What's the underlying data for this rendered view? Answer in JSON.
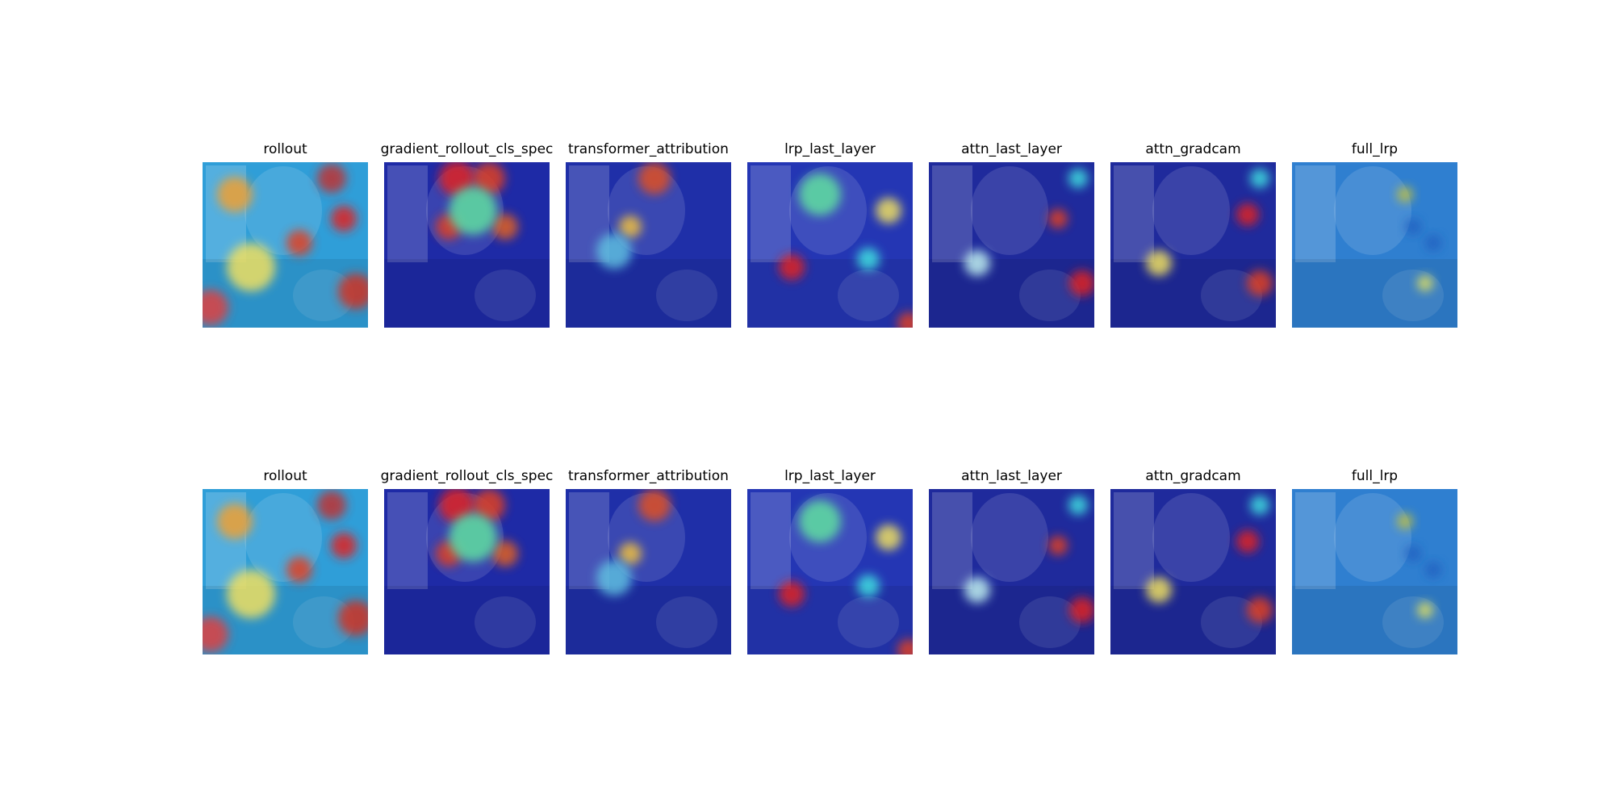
{
  "figure": {
    "rows": [
      {
        "panels": [
          {
            "title": "rollout",
            "method": "rollout"
          },
          {
            "title": "gradient_rollout_cls_spec",
            "method": "gradient_rollout_cls_spec"
          },
          {
            "title": "transformer_attribution",
            "method": "transformer_attribution"
          },
          {
            "title": "lrp_last_layer",
            "method": "lrp_last_layer"
          },
          {
            "title": "attn_last_layer",
            "method": "attn_last_layer"
          },
          {
            "title": "attn_gradcam",
            "method": "attn_gradcam"
          },
          {
            "title": "full_lrp",
            "method": "full_lrp"
          }
        ]
      },
      {
        "panels": [
          {
            "title": "rollout",
            "method": "rollout"
          },
          {
            "title": "gradient_rollout_cls_spec",
            "method": "gradient_rollout_cls_spec"
          },
          {
            "title": "transformer_attribution",
            "method": "transformer_attribution"
          },
          {
            "title": "lrp_last_layer",
            "method": "lrp_last_layer"
          },
          {
            "title": "attn_last_layer",
            "method": "attn_last_layer"
          },
          {
            "title": "attn_gradcam",
            "method": "attn_gradcam"
          },
          {
            "title": "full_lrp",
            "method": "full_lrp"
          }
        ]
      }
    ],
    "colors": {
      "background": "#ffffff",
      "title_text": "#000000",
      "colormap": "jet"
    },
    "image_content": "dog-and-cat-photo"
  }
}
